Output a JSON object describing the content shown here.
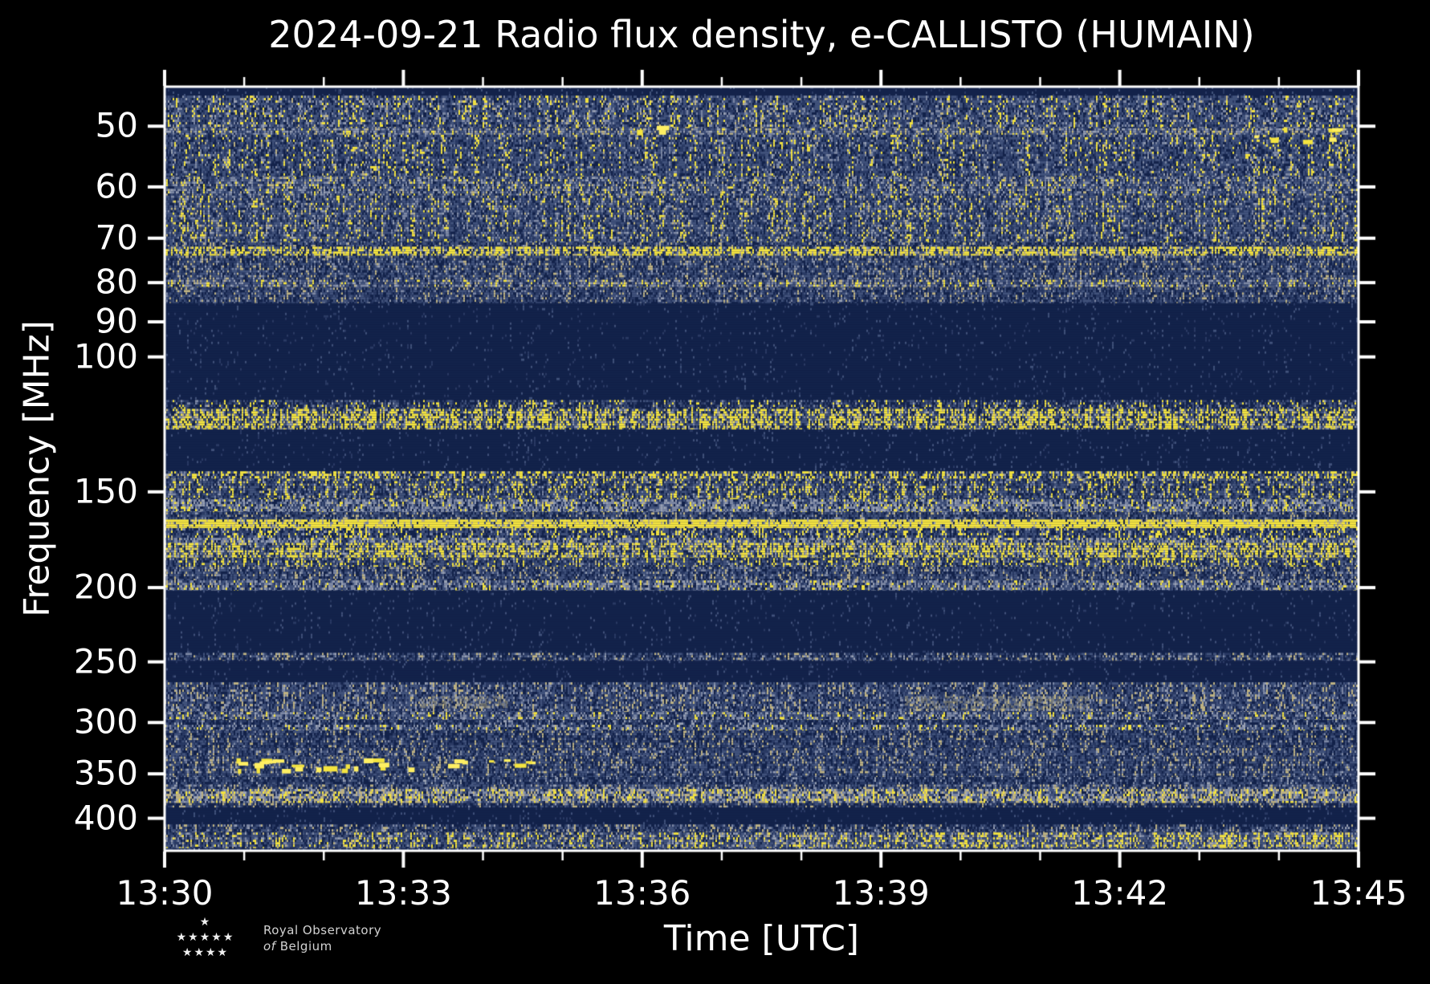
{
  "header": {
    "title": "2024-09-21 Radio flux density, e-CALLISTO (HUMAIN)"
  },
  "chart_data": {
    "type": "heatmap",
    "title": "2024-09-21 Radio flux density, e-CALLISTO (HUMAIN)",
    "xlabel": "Time [UTC]",
    "ylabel": "Frequency [MHz]",
    "x_tick_labels": [
      "13:30",
      "13:33",
      "13:36",
      "13:39",
      "13:42",
      "13:45"
    ],
    "x_minutes_total": 15,
    "x_major_every_min": 3,
    "x_minor_every_min": 1,
    "y_scale": "log",
    "y_inverted": true,
    "y_range_mhz": [
      44.4,
      441
    ],
    "y_tick_labels": [
      50,
      60,
      70,
      80,
      90,
      100,
      150,
      200,
      250,
      300,
      350,
      400
    ],
    "grid": false,
    "legend": "none",
    "palette": {
      "navy": "#13224a",
      "slatedark": "#2a3a64",
      "slate": "#41527b",
      "light": "#7d88a4",
      "gray": "#9aa2b4",
      "beige": "#bfb383",
      "yellow": "#f4e440",
      "yellowbright": "#ffef63",
      "spine": "#ffffff"
    },
    "bands": [
      {
        "f0": 44.4,
        "f1": 45.6,
        "w": [
          1,
          0.06,
          0.01,
          0,
          0,
          0,
          0
        ],
        "coh": 0.2
      },
      {
        "f0": 45.6,
        "f1": 50.3,
        "w": [
          0.18,
          0.2,
          0.34,
          0.16,
          0.04,
          0.07,
          0.01
        ],
        "coh": 0.55
      },
      {
        "f0": 50.3,
        "f1": 51.3,
        "w": [
          0.08,
          0.14,
          0.3,
          0.22,
          0.1,
          0.14,
          0.02
        ],
        "coh": 0.5
      },
      {
        "f0": 51.3,
        "f1": 58.2,
        "w": [
          0.2,
          0.24,
          0.34,
          0.13,
          0.04,
          0.045,
          0.005
        ],
        "coh": 0.55
      },
      {
        "f0": 58.2,
        "f1": 61.6,
        "w": [
          0.12,
          0.18,
          0.32,
          0.2,
          0.07,
          0.1,
          0.01
        ],
        "coh": 0.5
      },
      {
        "f0": 61.6,
        "f1": 70.9,
        "w": [
          0.16,
          0.22,
          0.33,
          0.15,
          0.05,
          0.08,
          0.01
        ],
        "coh": 0.6
      },
      {
        "f0": 70.9,
        "f1": 71.8,
        "w": [
          0.3,
          0.3,
          0.3,
          0.07,
          0.02,
          0.01,
          0
        ],
        "coh": 0.4
      },
      {
        "f0": 71.8,
        "f1": 73.8,
        "w": [
          0.1,
          0.08,
          0.14,
          0.06,
          0.02,
          0.1,
          0.5
        ],
        "coh": 1
      },
      {
        "f0": 73.8,
        "f1": 79.3,
        "w": [
          0.22,
          0.24,
          0.33,
          0.13,
          0.04,
          0.04,
          0
        ],
        "coh": 0.55
      },
      {
        "f0": 79.3,
        "f1": 81.2,
        "w": [
          0.1,
          0.15,
          0.3,
          0.2,
          0.1,
          0.14,
          0.01
        ],
        "coh": 0.6
      },
      {
        "f0": 81.2,
        "f1": 85.1,
        "w": [
          0.25,
          0.27,
          0.32,
          0.11,
          0.03,
          0.02,
          0
        ],
        "coh": 0.5
      },
      {
        "f0": 85.1,
        "f1": 113.8,
        "w": [
          1,
          0.04,
          0.005,
          0,
          0,
          0,
          0
        ],
        "coh": 0.1
      },
      {
        "f0": 113.8,
        "f1": 116.9,
        "w": [
          0.38,
          0.2,
          0.26,
          0.1,
          0.03,
          0.02,
          0.01
        ],
        "coh": 0.8
      },
      {
        "f0": 116.9,
        "f1": 124.4,
        "w": [
          0.14,
          0.08,
          0.2,
          0.08,
          0.03,
          0.09,
          0.38
        ],
        "coh": 1
      },
      {
        "f0": 124.4,
        "f1": 141,
        "w": [
          1,
          0.05,
          0.01,
          0,
          0,
          0,
          0
        ],
        "coh": 0.15
      },
      {
        "f0": 141,
        "f1": 144.2,
        "w": [
          0.18,
          0.12,
          0.22,
          0.1,
          0.03,
          0.06,
          0.29
        ],
        "coh": 1
      },
      {
        "f0": 144.2,
        "f1": 153.4,
        "w": [
          0.2,
          0.2,
          0.3,
          0.13,
          0.04,
          0.05,
          0.08
        ],
        "coh": 0.8
      },
      {
        "f0": 153.4,
        "f1": 159.5,
        "w": [
          0.12,
          0.12,
          0.2,
          0.28,
          0.22,
          0.05,
          0.01
        ],
        "coh": 0.7
      },
      {
        "f0": 159.5,
        "f1": 163,
        "w": [
          0.25,
          0.3,
          0.3,
          0.12,
          0.02,
          0.01,
          0
        ],
        "coh": 0.5
      },
      {
        "f0": 163,
        "f1": 167.3,
        "w": [
          0.04,
          0.02,
          0.05,
          0.04,
          0.02,
          0.08,
          0.75
        ],
        "coh": 0.45
      },
      {
        "f0": 167.3,
        "f1": 172.2,
        "w": [
          0.25,
          0.2,
          0.3,
          0.1,
          0.02,
          0.03,
          0.1
        ],
        "coh": 0.9
      },
      {
        "f0": 172.2,
        "f1": 174.9,
        "w": [
          0.1,
          0.12,
          0.26,
          0.26,
          0.18,
          0.06,
          0.02
        ],
        "coh": 0.6
      },
      {
        "f0": 174.9,
        "f1": 183,
        "w": [
          0.12,
          0.08,
          0.18,
          0.1,
          0.04,
          0.1,
          0.38
        ],
        "coh": 0.95
      },
      {
        "f0": 183,
        "f1": 187.9,
        "w": [
          0.2,
          0.2,
          0.3,
          0.12,
          0.03,
          0.05,
          0.1
        ],
        "coh": 0.85
      },
      {
        "f0": 187.9,
        "f1": 195.7,
        "w": [
          0.22,
          0.24,
          0.33,
          0.14,
          0.04,
          0.03,
          0
        ],
        "coh": 0.6
      },
      {
        "f0": 195.7,
        "f1": 201.7,
        "w": [
          0.12,
          0.14,
          0.27,
          0.24,
          0.15,
          0.07,
          0.01
        ],
        "coh": 0.6
      },
      {
        "f0": 201.7,
        "f1": 243.3,
        "w": [
          1,
          0.04,
          0.01,
          0,
          0,
          0,
          0
        ],
        "coh": 0.1
      },
      {
        "f0": 243.3,
        "f1": 249.3,
        "w": [
          0.3,
          0.2,
          0.25,
          0.15,
          0.07,
          0.03,
          0
        ],
        "coh": 0.7
      },
      {
        "f0": 249.3,
        "f1": 265.8,
        "w": [
          1,
          0.04,
          0.01,
          0,
          0,
          0,
          0
        ],
        "coh": 0.1
      },
      {
        "f0": 265.8,
        "f1": 290.7,
        "w": [
          0.2,
          0.24,
          0.33,
          0.15,
          0.04,
          0.04,
          0
        ],
        "coh": 0.6
      },
      {
        "f0": 290.7,
        "f1": 297.8,
        "w": [
          0.14,
          0.16,
          0.28,
          0.22,
          0.13,
          0.06,
          0.01
        ],
        "coh": 0.6
      },
      {
        "f0": 297.8,
        "f1": 302,
        "w": [
          0.4,
          0.3,
          0.22,
          0.07,
          0.01,
          0,
          0
        ],
        "coh": 0.6
      },
      {
        "f0": 302,
        "f1": 307.4,
        "w": [
          0.16,
          0.18,
          0.3,
          0.2,
          0.1,
          0.05,
          0.01
        ],
        "coh": 0.6
      },
      {
        "f0": 307.4,
        "f1": 324,
        "w": [
          0.3,
          0.26,
          0.3,
          0.1,
          0.02,
          0.02,
          0
        ],
        "coh": 0.6
      },
      {
        "f0": 324,
        "f1": 332.3,
        "w": [
          0.22,
          0.24,
          0.34,
          0.14,
          0.03,
          0.03,
          0
        ],
        "coh": 0.6
      },
      {
        "f0": 332.3,
        "f1": 353.5,
        "w": [
          0.22,
          0.24,
          0.33,
          0.14,
          0.04,
          0.03,
          0
        ],
        "coh": 0.6
      },
      {
        "f0": 353.5,
        "f1": 361.4,
        "w": [
          0.35,
          0.3,
          0.25,
          0.08,
          0.02,
          0,
          0
        ],
        "coh": 0.5
      },
      {
        "f0": 361.4,
        "f1": 366.3,
        "w": [
          0.2,
          0.2,
          0.3,
          0.17,
          0.08,
          0.05,
          0
        ],
        "coh": 0.7
      },
      {
        "f0": 366.3,
        "f1": 382.2,
        "w": [
          0.08,
          0.1,
          0.2,
          0.16,
          0.1,
          0.3,
          0.06
        ],
        "coh": 0.7
      },
      {
        "f0": 382.2,
        "f1": 387.4,
        "w": [
          0.4,
          0.3,
          0.22,
          0.06,
          0.01,
          0.01,
          0
        ],
        "coh": 0.6
      },
      {
        "f0": 387.4,
        "f1": 407.4,
        "w": [
          1,
          0.05,
          0.01,
          0,
          0,
          0,
          0
        ],
        "coh": 0.1
      },
      {
        "f0": 407.4,
        "f1": 417.4,
        "w": [
          0.3,
          0.22,
          0.28,
          0.12,
          0.04,
          0.04,
          0
        ],
        "coh": 0.7
      },
      {
        "f0": 417.4,
        "f1": 437.7,
        "w": [
          0.18,
          0.2,
          0.3,
          0.14,
          0.06,
          0.1,
          0.02
        ],
        "coh": 0.7,
        "grad": 0.5
      },
      {
        "f0": 437.7,
        "f1": 441,
        "w": [
          0.6,
          0.25,
          0.13,
          0.02,
          0,
          0,
          0
        ],
        "coh": 0.3
      }
    ],
    "events": [
      {
        "kind": "blobs",
        "t0": 0.9,
        "t1": 3.2,
        "f0": 333,
        "f1": 345,
        "n": 22
      },
      {
        "kind": "blobs",
        "t0": 3.4,
        "t1": 4.6,
        "f0": 334,
        "f1": 342,
        "n": 8
      },
      {
        "kind": "blobs",
        "t0": 13.4,
        "t1": 14.7,
        "f0": 49.8,
        "f1": 52.2,
        "n": 7
      },
      {
        "kind": "blobs",
        "t0": 5.8,
        "t1": 6.3,
        "f0": 48.5,
        "f1": 51.5,
        "n": 3
      },
      {
        "kind": "smear",
        "t0": 3.2,
        "t1": 4.3,
        "f0": 277,
        "f1": 287,
        "alpha": 0.5
      },
      {
        "kind": "smear",
        "t0": 9.3,
        "t1": 11.6,
        "f0": 277,
        "f1": 288,
        "alpha": 0.45
      }
    ]
  },
  "footer": {
    "stars": [
      "★",
      "★★★★★",
      "★★★★"
    ],
    "line1": "Royal Observatory",
    "line2_italic": "of",
    "line2_rest": "Belgium"
  }
}
